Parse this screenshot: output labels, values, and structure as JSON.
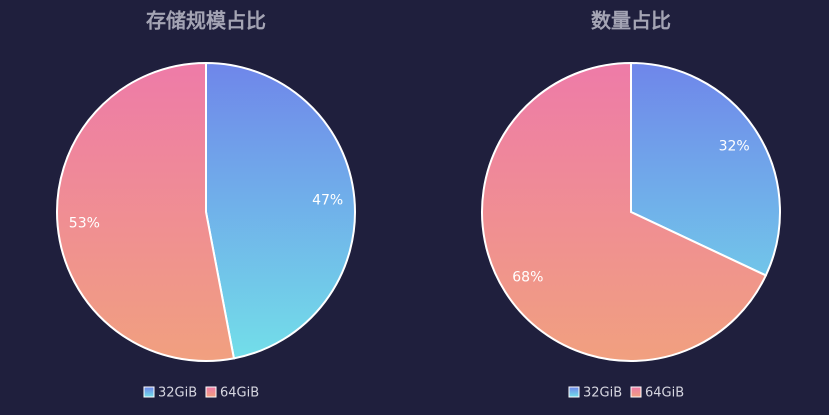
{
  "chart_data": [
    {
      "type": "pie",
      "title": "存储规模占比",
      "categories": [
        "32GiB",
        "64GiB"
      ],
      "values": [
        47,
        53
      ],
      "value_labels": [
        "47%",
        "53%"
      ],
      "colors": [
        [
          "#6f86ea",
          "#72dfe9"
        ],
        [
          "#ee7ba8",
          "#f1a07f"
        ]
      ]
    },
    {
      "type": "pie",
      "title": "数量占比",
      "categories": [
        "32GiB",
        "64GiB"
      ],
      "values": [
        32,
        68
      ],
      "value_labels": [
        "32%",
        "68%"
      ],
      "colors": [
        [
          "#6f86ea",
          "#72dfe9"
        ],
        [
          "#ee7ba8",
          "#f1a07f"
        ]
      ]
    }
  ]
}
